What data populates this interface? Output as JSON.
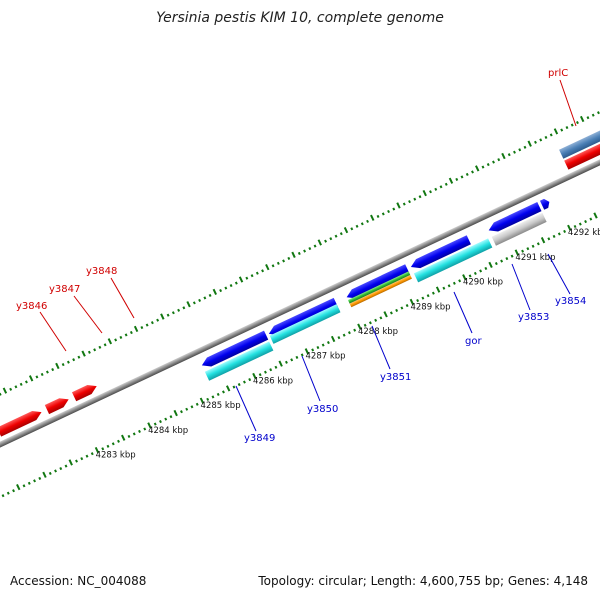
{
  "title": "Yersinia pestis KIM 10, complete genome",
  "footer": {
    "accession": "Accession: NC_004088",
    "topology": "Topology: circular; Length: 4,600,755 bp; Genes: 4,148"
  },
  "colors": {
    "forward_label": "#d00000",
    "reverse_label": "#0000cc",
    "tick": "#117711",
    "backbone": "#8c8c8c"
  },
  "ruler": [
    "4283 kbp",
    "4284 kbp",
    "4285 kbp",
    "4286 kbp",
    "4287 kbp",
    "4288 kbp",
    "4289 kbp",
    "4290 kbp",
    "4291 kbp",
    "4292 kbp"
  ],
  "forward_genes": [
    {
      "label": "y3846"
    },
    {
      "label": "y3847"
    },
    {
      "label": "y3848"
    },
    {
      "label": "prlC"
    }
  ],
  "reverse_genes": [
    {
      "label": "y3849"
    },
    {
      "label": "y3850"
    },
    {
      "label": "y3851"
    },
    {
      "label": "gor"
    },
    {
      "label": "y3853"
    },
    {
      "label": "y3854"
    }
  ]
}
